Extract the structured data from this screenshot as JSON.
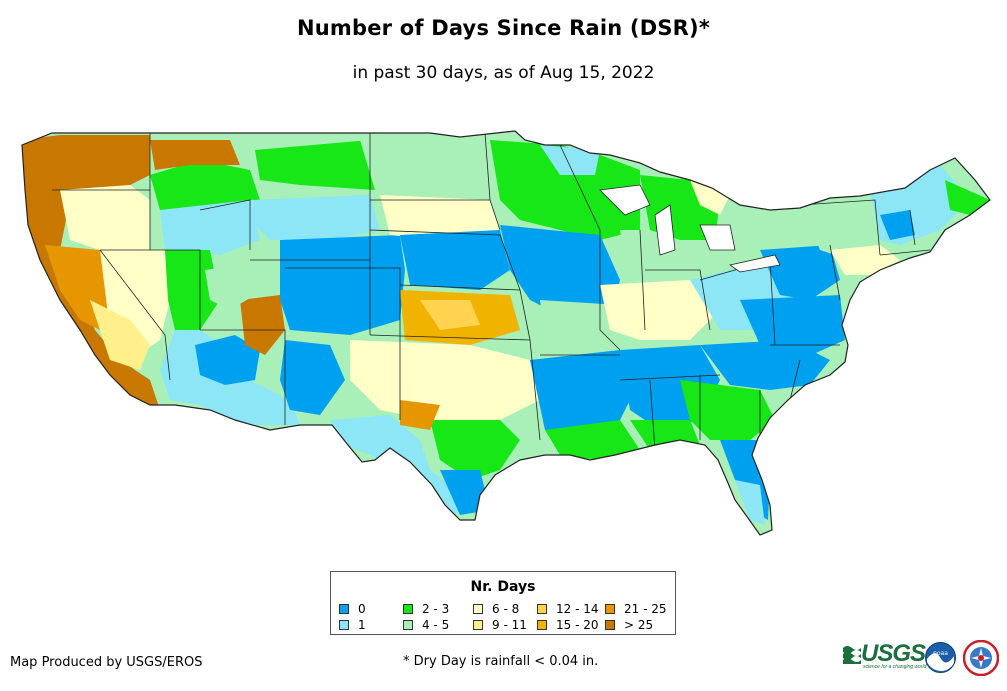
{
  "header": {
    "title": "Number of Days Since Rain (DSR)*",
    "subtitle": "in past 30 days, as of Aug 15, 2022"
  },
  "legend": {
    "title": "Nr. Days",
    "items": [
      {
        "label": "0",
        "color": "#00a0f0"
      },
      {
        "label": "1",
        "color": "#8ce6f5"
      },
      {
        "label": "2 - 3",
        "color": "#17e617"
      },
      {
        "label": "4 - 5",
        "color": "#a8f0b8"
      },
      {
        "label": "6 - 8",
        "color": "#ffffc8"
      },
      {
        "label": "9 - 11",
        "color": "#fff08c"
      },
      {
        "label": "12 - 14",
        "color": "#ffd250"
      },
      {
        "label": "15 - 20",
        "color": "#f0b400"
      },
      {
        "label": "21 - 25",
        "color": "#e69600"
      },
      {
        "label": "> 25",
        "color": "#c87800"
      }
    ]
  },
  "footer": {
    "credit": "Map Produced by USGS/EROS",
    "note": "* Dry Day is rainfall < 0.04 in."
  },
  "logos": {
    "usgs": {
      "text": "USGS",
      "tagline": "science for a changing world"
    },
    "noaa": {
      "name": "noaa-logo-icon"
    },
    "nws": {
      "name": "nws-logo-icon"
    }
  }
}
